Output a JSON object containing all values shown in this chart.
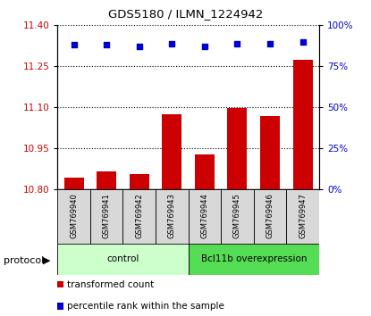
{
  "title": "GDS5180 / ILMN_1224942",
  "samples": [
    "GSM769940",
    "GSM769941",
    "GSM769942",
    "GSM769943",
    "GSM769944",
    "GSM769945",
    "GSM769946",
    "GSM769947"
  ],
  "bar_values": [
    10.845,
    10.865,
    10.858,
    11.075,
    10.928,
    11.098,
    11.068,
    11.275
  ],
  "scatter_values": [
    88,
    88,
    87,
    89,
    87,
    89,
    89,
    90
  ],
  "ylim_left": [
    10.8,
    11.4
  ],
  "ylim_right": [
    0,
    100
  ],
  "yticks_left": [
    10.8,
    10.95,
    11.1,
    11.25,
    11.4
  ],
  "yticks_right": [
    0,
    25,
    50,
    75,
    100
  ],
  "bar_color": "#cc0000",
  "scatter_color": "#0000cc",
  "groups": [
    {
      "label": "control",
      "indices": [
        0,
        1,
        2,
        3
      ],
      "color": "#ccffcc"
    },
    {
      "label": "Bcl11b overexpression",
      "indices": [
        4,
        5,
        6,
        7
      ],
      "color": "#55dd55"
    }
  ],
  "protocol_label": "protocol",
  "legend_bar_label": "transformed count",
  "legend_scatter_label": "percentile rank within the sample",
  "bar_color_legend": "#cc0000",
  "scatter_color_legend": "#0000cc",
  "background_color": "#d8d8d8",
  "tick_label_color_left": "#cc0000",
  "tick_label_color_right": "#0000cc",
  "right_tick_suffix": "%"
}
